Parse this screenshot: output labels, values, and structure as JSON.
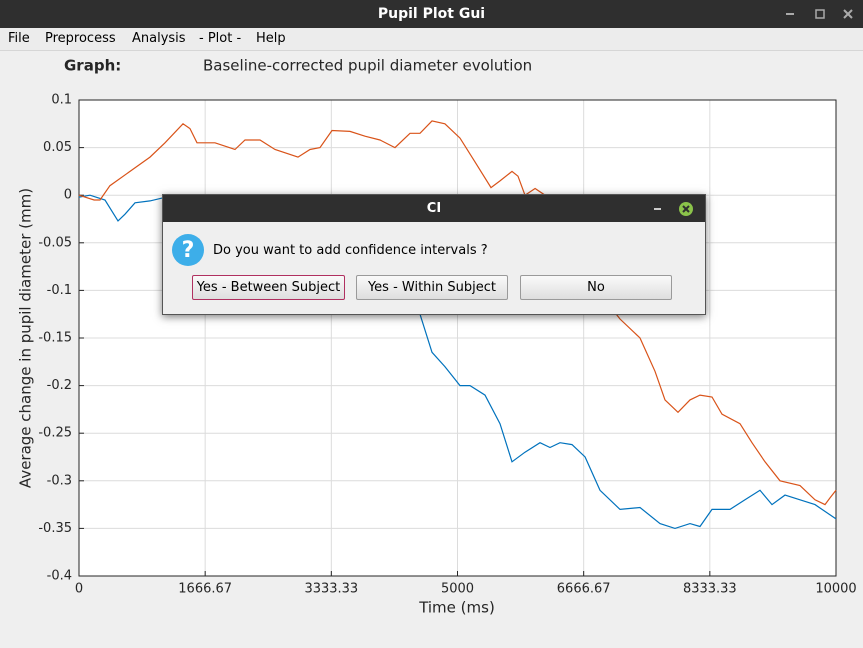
{
  "window": {
    "title": "Pupil Plot Gui"
  },
  "menu": [
    "File",
    "Preprocess",
    "Analysis",
    "- Plot -",
    "Help"
  ],
  "graph_label": "Graph:",
  "chart_data": {
    "type": "line",
    "title": "Baseline-corrected pupil diameter evolution",
    "xlabel": "Time (ms)",
    "ylabel": "Average change in pupil diameter (mm)",
    "xlim": [
      0,
      10000
    ],
    "xticks": [
      0,
      1666.67,
      3333.33,
      5000,
      6666.67,
      8333.33,
      10000
    ],
    "ylim": [
      -0.4,
      0.1
    ],
    "yticks": [
      0.1,
      0.05,
      0,
      -0.05,
      -0.1,
      -0.15,
      -0.2,
      -0.25,
      -0.3,
      -0.35,
      -0.4
    ],
    "grid": true,
    "series": [
      {
        "color": "#0072bd",
        "x": [
          0,
          145,
          343,
          515,
          608,
          740,
          938,
          1097,
          1500,
          2000,
          2500,
          3000,
          3300,
          3606,
          4504,
          4663,
          4834,
          5033,
          5165,
          5363,
          5561,
          5720,
          5892,
          6090,
          6222,
          6354,
          6513,
          6685,
          6883,
          7147,
          7411,
          7675,
          7873,
          8071,
          8203,
          8362,
          8600,
          8798,
          8996,
          9154,
          9326,
          9524,
          9723,
          10000
        ],
        "values": [
          -0.002,
          0,
          -0.005,
          -0.027,
          -0.02,
          -0.008,
          -0.006,
          -0.003,
          -0.01,
          -0.03,
          -0.06,
          -0.09,
          -0.11,
          -0.123,
          -0.125,
          -0.165,
          -0.18,
          -0.2,
          -0.2,
          -0.21,
          -0.24,
          -0.28,
          -0.27,
          -0.26,
          -0.265,
          -0.26,
          -0.262,
          -0.275,
          -0.31,
          -0.33,
          -0.328,
          -0.345,
          -0.35,
          -0.345,
          -0.348,
          -0.33,
          -0.33,
          -0.32,
          -0.31,
          -0.325,
          -0.315,
          -0.32,
          -0.325,
          -0.34
        ]
      },
      {
        "color": "#d95319",
        "x": [
          0,
          200,
          277,
          408,
          674,
          938,
          1136,
          1374,
          1466,
          1559,
          1797,
          2061,
          2193,
          2391,
          2589,
          2893,
          3051,
          3184,
          3342,
          3580,
          3778,
          3976,
          4174,
          4372,
          4504,
          4663,
          4834,
          5033,
          5231,
          5443,
          5561,
          5720,
          5799,
          5892,
          6025,
          6157,
          6400,
          6700,
          6950,
          7147,
          7411,
          7609,
          7741,
          7913,
          8071,
          8203,
          8362,
          8494,
          8732,
          8890,
          9062,
          9260,
          9524,
          9723,
          9855,
          9921,
          10000
        ],
        "values": [
          0,
          -0.005,
          -0.005,
          0.01,
          0.025,
          0.04,
          0.055,
          0.075,
          0.07,
          0.055,
          0.055,
          0.048,
          0.058,
          0.058,
          0.048,
          0.04,
          0.048,
          0.05,
          0.068,
          0.067,
          0.062,
          0.058,
          0.05,
          0.065,
          0.065,
          0.078,
          0.075,
          0.06,
          0.035,
          0.008,
          0.015,
          0.025,
          0.02,
          0,
          0.007,
          0,
          -0.03,
          -0.07,
          -0.11,
          -0.13,
          -0.15,
          -0.185,
          -0.215,
          -0.228,
          -0.215,
          -0.21,
          -0.212,
          -0.23,
          -0.24,
          -0.26,
          -0.28,
          -0.3,
          -0.305,
          -0.32,
          -0.325,
          -0.318,
          -0.31
        ]
      }
    ]
  },
  "dialog": {
    "title": "CI",
    "message": "Do you want to add confidence intervals ?",
    "buttons": [
      "Yes - Between Subject",
      "Yes - Within Subject",
      "No"
    ]
  }
}
